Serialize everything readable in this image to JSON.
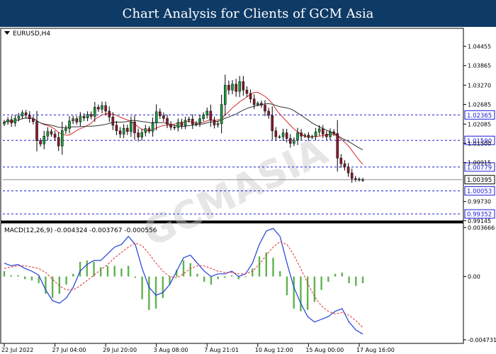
{
  "header": {
    "title": "Chart Analysis for Clients of GCM Asia"
  },
  "watermark": "GCMASIA",
  "colors": {
    "title_bg": "#0e3a66",
    "level_line": "#1a1ad6",
    "candle_up": "#1e9a3c",
    "candle_down": "#8b1a2f",
    "ma_fast": "#d42a2a",
    "ma_slow": "#333333",
    "macd_line": "#1f3fd6",
    "macd_signal": "#e03030",
    "macd_hist": "#5fb34f"
  },
  "chart_data": [
    {
      "type": "candlestick",
      "title": "EURUSD,H4",
      "ylim": [
        0.9914,
        1.05
      ],
      "y_ticks": [
        "1.04455",
        "1.03865",
        "1.03270",
        "1.02685",
        "1.02085",
        "1.01500",
        "1.00915",
        "0.99730",
        "0.99145"
      ],
      "y_tick_values": [
        1.04455,
        1.03865,
        1.0327,
        1.02685,
        1.02085,
        1.015,
        1.00915,
        0.9973,
        0.99145
      ],
      "x_ticks": [
        "22 Jul 2022",
        "27 Jul 04:00",
        "29 Jul 20:00",
        "3 Aug 08:00",
        "7 Aug 21:01",
        "10 Aug 12:00",
        "15 Aug 00:00",
        "17 Aug 16:00"
      ],
      "levels": [
        "1.02365",
        "1.01590",
        "1.00779",
        "1.00053",
        "0.99352"
      ],
      "level_values": [
        1.02365,
        1.0159,
        1.00779,
        1.00053,
        0.99352
      ],
      "current_price_label": "1.00395",
      "current_price": 1.00395,
      "close_series": [
        1.0215,
        1.0222,
        1.0212,
        1.0226,
        1.0233,
        1.0243,
        1.0236,
        1.0225,
        1.0216,
        1.0158,
        1.0148,
        1.0172,
        1.0186,
        1.0178,
        1.0168,
        1.0142,
        1.0189,
        1.0195,
        1.0218,
        1.0225,
        1.0215,
        1.0232,
        1.0227,
        1.0238,
        1.0232,
        1.026,
        1.0254,
        1.0265,
        1.0248,
        1.023,
        1.0205,
        1.0188,
        1.0178,
        1.0196,
        1.0186,
        1.0215,
        1.0182,
        1.0169,
        1.0183,
        1.0195,
        1.0187,
        1.0212,
        1.0246,
        1.0234,
        1.0226,
        1.0208,
        1.0199,
        1.0198,
        1.0214,
        1.0204,
        1.022,
        1.0224,
        1.0208,
        1.0212,
        1.0225,
        1.0236,
        1.0248,
        1.022,
        1.0206,
        1.021,
        1.0268,
        1.0327,
        1.0312,
        1.033,
        1.0308,
        1.0338,
        1.0312,
        1.0302,
        1.0285,
        1.0268,
        1.0272,
        1.0266,
        1.0248,
        1.0235,
        1.0188,
        1.017,
        1.017,
        1.0182,
        1.0165,
        1.015,
        1.016,
        1.0182,
        1.0172,
        1.0175,
        1.0168,
        1.0171,
        1.0185,
        1.0194,
        1.0178,
        1.017,
        1.0185,
        1.018,
        1.0105,
        1.0088,
        1.0078,
        1.006,
        1.0043,
        1.0041,
        1.0039,
        1.0039
      ]
    },
    {
      "type": "line",
      "title": "MACD(12,26,9) -0.004324 -0.003767 -0.000556",
      "ylim": [
        -0.005,
        0.004
      ],
      "y_ticks": [
        "0.003666",
        "0.00",
        "-0.004731"
      ],
      "y_tick_values": [
        0.003666,
        0.0,
        -0.004731
      ],
      "series": [
        {
          "values": [
            0.001,
            0.0008,
            0.0009,
            0.0006,
            0.0004,
            0.0001,
            -0.001,
            -0.0018,
            -0.002,
            -0.0016,
            -0.0008,
            0.0004,
            0.0009,
            0.0012,
            0.0012,
            0.0017,
            0.0022,
            0.0024,
            0.003,
            0.0024,
            0.0006,
            -0.0008,
            -0.0014,
            -0.0012,
            -0.0006,
            0.0004,
            0.0014,
            0.0016,
            0.001,
            0.0004,
            0.0,
            0.0002,
            0.0002,
            0.0004,
            0.0,
            0.0002,
            0.001,
            0.0024,
            0.0034,
            0.0036,
            0.003,
            0.001,
            -0.0008,
            -0.002,
            -0.003,
            -0.0034,
            -0.0032,
            -0.003,
            -0.0026,
            -0.0024,
            -0.0034,
            -0.004,
            -0.0043
          ]
        },
        {
          "values": [
            0.0006,
            0.0007,
            0.0008,
            0.0008,
            0.0007,
            0.0006,
            0.0003,
            -0.0002,
            -0.0007,
            -0.001,
            -0.001,
            -0.0007,
            -0.0003,
            0.0001,
            0.0005,
            0.0009,
            0.0014,
            0.0018,
            0.0022,
            0.0025,
            0.0023,
            0.0017,
            0.001,
            0.0004,
            0.0,
            -0.0001,
            0.0002,
            0.0006,
            0.0008,
            0.0008,
            0.0006,
            0.0004,
            0.0003,
            0.0003,
            0.0002,
            0.0002,
            0.0004,
            0.0009,
            0.0016,
            0.0022,
            0.0026,
            0.0024,
            0.0016,
            0.0006,
            -0.0005,
            -0.0015,
            -0.0022,
            -0.0026,
            -0.0028,
            -0.0027,
            -0.0029,
            -0.0033,
            -0.0038
          ]
        }
      ]
    }
  ],
  "x_tick_indices": [
    0,
    14,
    28,
    42,
    56,
    70,
    84,
    98
  ]
}
